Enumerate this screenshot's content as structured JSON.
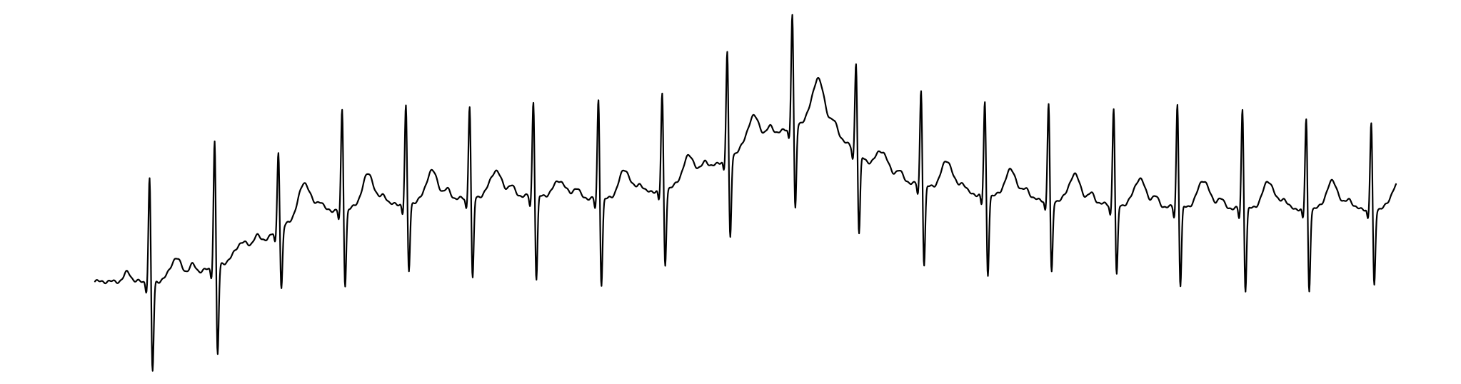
{
  "chart_data": {
    "type": "line",
    "title": "",
    "xlabel": "",
    "ylabel": "",
    "grid": false,
    "axes_visible": false,
    "legend": "none",
    "line_color": "#000000",
    "xlim": [
      0,
      10
    ],
    "ylim": [
      -1.1,
      1.4
    ],
    "baseline": [
      [
        0.0,
        -0.55
      ],
      [
        0.6,
        -0.55
      ],
      [
        1.1,
        -0.38
      ],
      [
        1.6,
        -0.05
      ],
      [
        2.5,
        0.03
      ],
      [
        3.1,
        0.08
      ],
      [
        3.5,
        0.07
      ],
      [
        4.0,
        0.05
      ],
      [
        4.5,
        0.15
      ],
      [
        5.0,
        0.43
      ],
      [
        5.55,
        0.66
      ],
      [
        6.05,
        0.22
      ],
      [
        6.6,
        0.1
      ],
      [
        7.2,
        0.05
      ],
      [
        8.0,
        0.0
      ],
      [
        9.0,
        -0.02
      ],
      [
        10.0,
        -0.02
      ]
    ],
    "beats": [
      {
        "t": 0.42,
        "r_amp": 0.78,
        "s_amp": 0.68,
        "t_amp": 0.16
      },
      {
        "t": 0.92,
        "r_amp": 0.95,
        "s_amp": 0.68,
        "t_amp": 0.1
      },
      {
        "t": 1.41,
        "r_amp": 0.6,
        "s_amp": 0.46,
        "t_amp": 0.22
      },
      {
        "t": 1.9,
        "r_amp": 0.75,
        "s_amp": 0.58,
        "t_amp": 0.24
      },
      {
        "t": 2.39,
        "r_amp": 0.73,
        "s_amp": 0.52,
        "t_amp": 0.22
      },
      {
        "t": 2.88,
        "r_amp": 0.7,
        "s_amp": 0.62,
        "t_amp": 0.18
      },
      {
        "t": 3.37,
        "r_amp": 0.72,
        "s_amp": 0.63,
        "t_amp": 0.12
      },
      {
        "t": 3.87,
        "r_amp": 0.75,
        "s_amp": 0.65,
        "t_amp": 0.2
      },
      {
        "t": 4.36,
        "r_amp": 0.72,
        "s_amp": 0.58,
        "t_amp": 0.18
      },
      {
        "t": 4.86,
        "r_amp": 0.8,
        "s_amp": 0.62,
        "t_amp": 0.2
      },
      {
        "t": 5.36,
        "r_amp": 0.85,
        "s_amp": 0.64,
        "t_amp": 0.28
      },
      {
        "t": 5.85,
        "r_amp": 0.68,
        "s_amp": 0.6,
        "t_amp": 0.18
      },
      {
        "t": 6.35,
        "r_amp": 0.72,
        "s_amp": 0.6,
        "t_amp": 0.22
      },
      {
        "t": 6.84,
        "r_amp": 0.7,
        "s_amp": 0.6,
        "t_amp": 0.2
      },
      {
        "t": 7.33,
        "r_amp": 0.73,
        "s_amp": 0.55,
        "t_amp": 0.2
      },
      {
        "t": 7.83,
        "r_amp": 0.73,
        "s_amp": 0.54,
        "t_amp": 0.2
      },
      {
        "t": 8.32,
        "r_amp": 0.78,
        "s_amp": 0.6,
        "t_amp": 0.2
      },
      {
        "t": 8.82,
        "r_amp": 0.75,
        "s_amp": 0.62,
        "t_amp": 0.2
      },
      {
        "t": 9.31,
        "r_amp": 0.68,
        "s_amp": 0.62,
        "t_amp": 0.2
      },
      {
        "t": 9.81,
        "r_amp": 0.65,
        "s_amp": 0.58,
        "t_amp": 0.18
      }
    ]
  }
}
